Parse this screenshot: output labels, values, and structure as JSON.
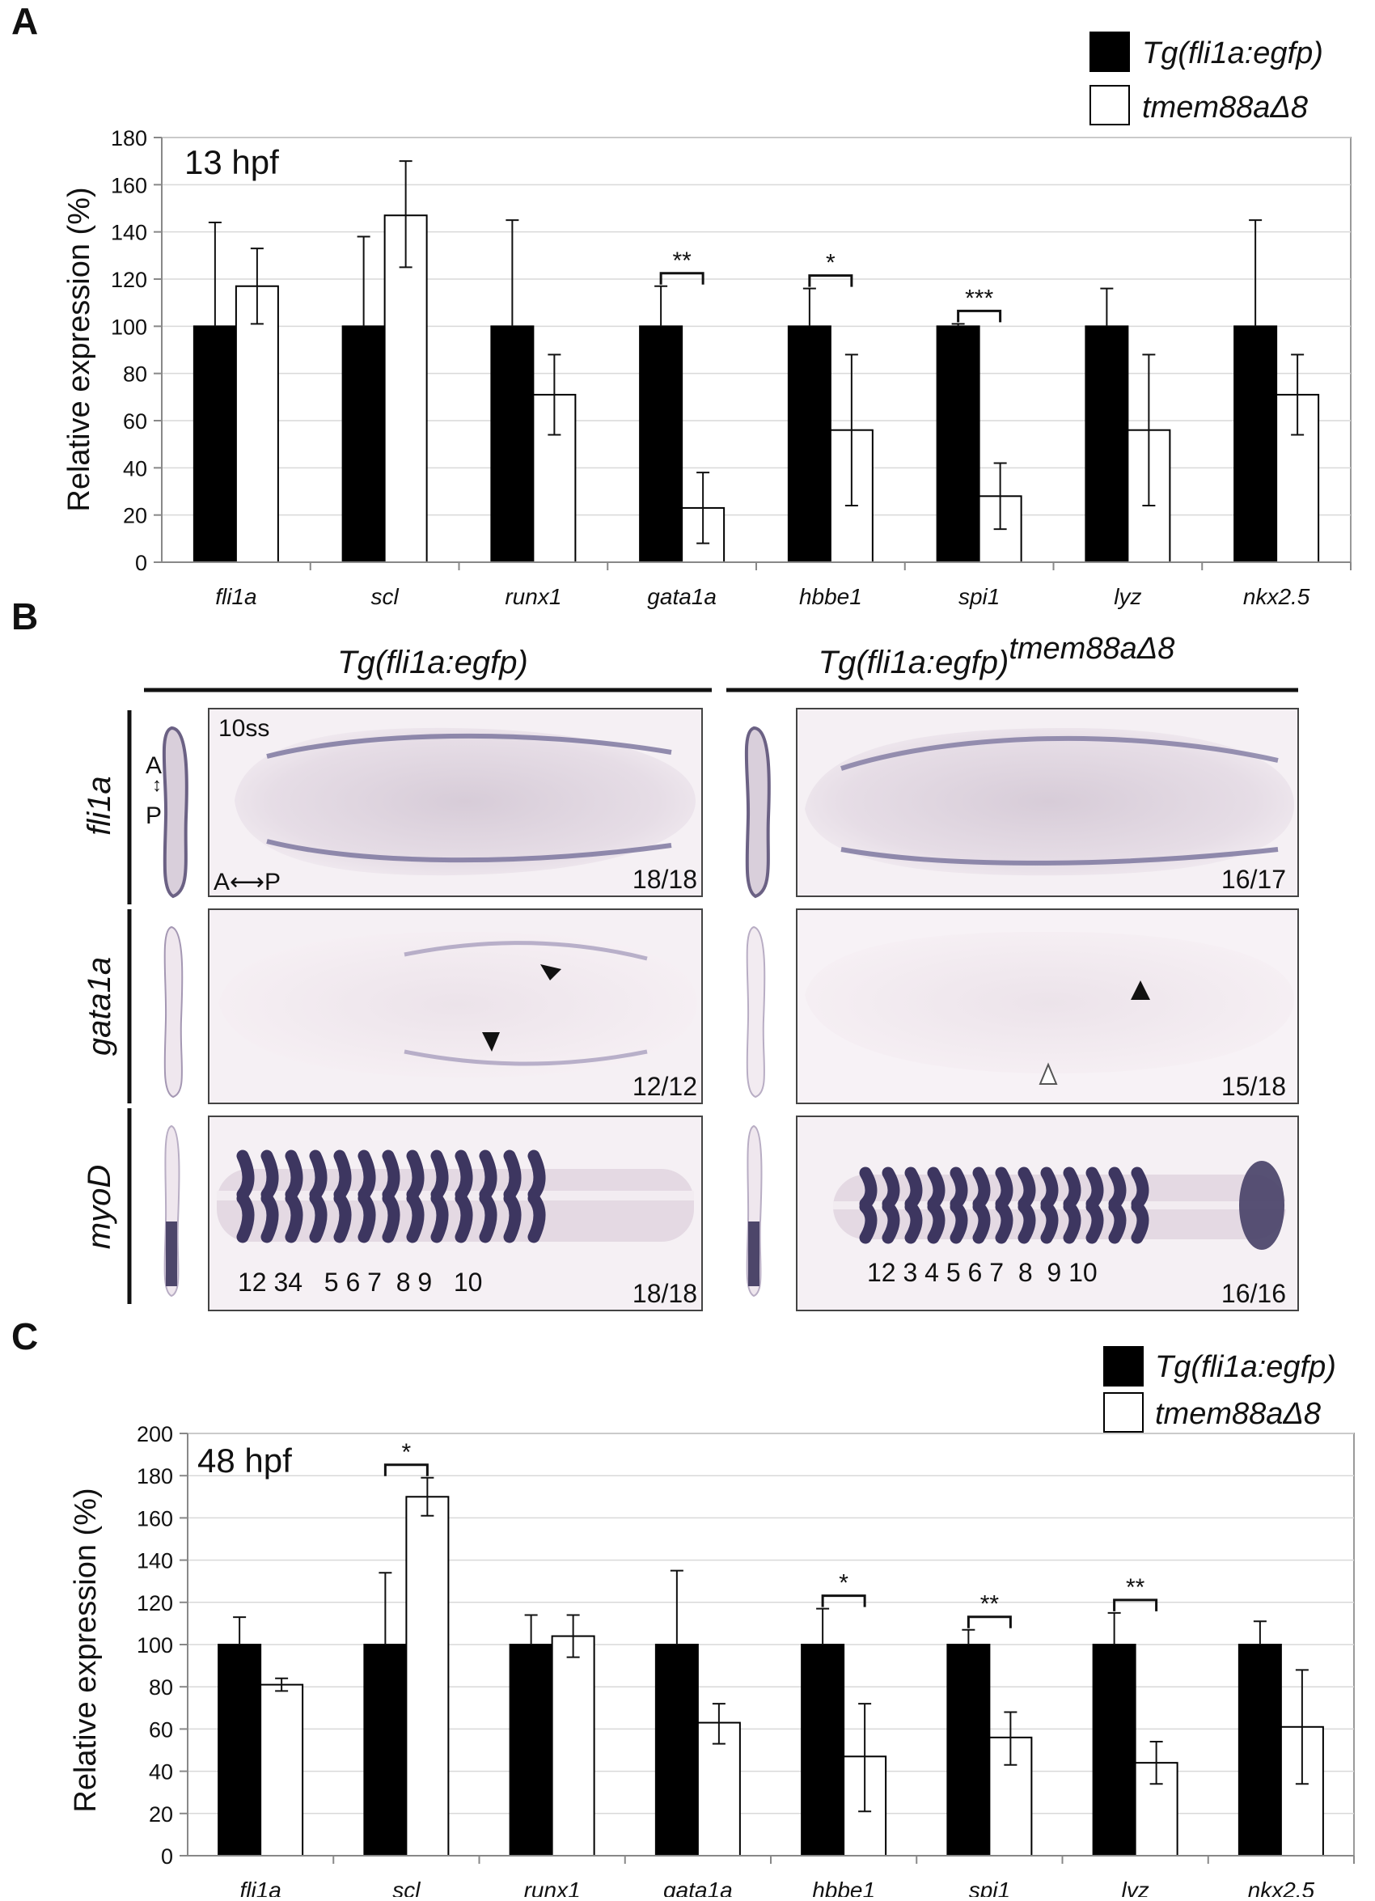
{
  "panels": {
    "A": {
      "letter": "A",
      "legend": [
        {
          "label": "Tg(fli1a:egfp)",
          "color": "#000000"
        },
        {
          "label": "tmem88aΔ8",
          "color": "#ffffff"
        }
      ]
    },
    "B": {
      "letter": "B",
      "column_titles": [
        {
          "base": "Tg(fli1a:egfp)",
          "sup": ""
        },
        {
          "base": "Tg(fli1a:egfp)",
          "sup": "tmem88aΔ8"
        }
      ],
      "rows": [
        {
          "label": "fli1a",
          "counts": [
            "18/18",
            "16/17"
          ]
        },
        {
          "label": "gata1a",
          "counts": [
            "12/12",
            "15/18"
          ]
        },
        {
          "label": "myoD",
          "counts": [
            "18/18",
            "16/16"
          ]
        }
      ],
      "stage_label": "10ss",
      "axis_label_A": "A",
      "axis_label_P": "P",
      "axis_arrow_horizontal": "A⟷P",
      "somite_numbers_left": "12 34   5 6 7  8 9   10",
      "somite_numbers_right": "12 3 4 5 6 7  8  9 10"
    },
    "C": {
      "letter": "C",
      "legend": [
        {
          "label": "Tg(fli1a:egfp)",
          "color": "#000000"
        },
        {
          "label": "tmem88aΔ8",
          "color": "#ffffff"
        }
      ]
    }
  },
  "chart_data": [
    {
      "type": "bar",
      "panel": "A",
      "annotation": "13 hpf",
      "xlabel": "",
      "ylabel": "Relative expression (%)",
      "ylim": [
        0,
        180
      ],
      "yticks": [
        0,
        20,
        40,
        60,
        80,
        100,
        120,
        140,
        160,
        180
      ],
      "grid": true,
      "legend_position": "top-right",
      "categories": [
        "fli1a",
        "scl",
        "runx1",
        "gata1a",
        "hbbe1",
        "spi1",
        "lyz",
        "nkx2.5"
      ],
      "series": [
        {
          "name": "Tg(fli1a:egfp)",
          "color": "#000000",
          "values": [
            100,
            100,
            100,
            100,
            100,
            100,
            100,
            100
          ],
          "error_upper": [
            144,
            138,
            145,
            117,
            116,
            101,
            116,
            145
          ],
          "error_lower": [
            null,
            null,
            null,
            null,
            null,
            null,
            null,
            null
          ]
        },
        {
          "name": "tmem88aΔ8",
          "color": "#ffffff",
          "values": [
            117,
            147,
            71,
            23,
            56,
            28,
            56,
            71
          ],
          "error_upper": [
            133,
            170,
            88,
            38,
            88,
            42,
            88,
            88
          ],
          "error_lower": [
            101,
            125,
            54,
            8,
            24,
            14,
            24,
            54
          ]
        }
      ],
      "significance": [
        {
          "category": "gata1a",
          "label": "**"
        },
        {
          "category": "hbbe1",
          "label": "*"
        },
        {
          "category": "spi1",
          "label": "***"
        }
      ]
    },
    {
      "type": "bar",
      "panel": "C",
      "annotation": "48 hpf",
      "xlabel": "",
      "ylabel": "Relative expression (%)",
      "ylim": [
        0,
        200
      ],
      "yticks": [
        0,
        20,
        40,
        60,
        80,
        100,
        120,
        140,
        160,
        180,
        200
      ],
      "grid": true,
      "legend_position": "top-right",
      "categories": [
        "fli1a",
        "scl",
        "runx1",
        "gata1a",
        "hbbe1",
        "spi1",
        "lyz",
        "nkx2.5"
      ],
      "series": [
        {
          "name": "Tg(fli1a:egfp)",
          "color": "#000000",
          "values": [
            100,
            100,
            100,
            100,
            100,
            100,
            100,
            100
          ],
          "error_upper": [
            113,
            134,
            114,
            135,
            117,
            107,
            115,
            111
          ],
          "error_lower": [
            null,
            null,
            null,
            null,
            null,
            null,
            null,
            null
          ]
        },
        {
          "name": "tmem88aΔ8",
          "color": "#ffffff",
          "values": [
            81,
            170,
            104,
            63,
            47,
            56,
            44,
            61
          ],
          "error_upper": [
            84,
            179,
            114,
            72,
            72,
            68,
            54,
            88
          ],
          "error_lower": [
            78,
            161,
            94,
            53,
            21,
            43,
            34,
            34
          ]
        }
      ],
      "significance": [
        {
          "category": "scl",
          "label": "*"
        },
        {
          "category": "hbbe1",
          "label": "*"
        },
        {
          "category": "spi1",
          "label": "**"
        },
        {
          "category": "lyz",
          "label": "**"
        }
      ]
    }
  ]
}
